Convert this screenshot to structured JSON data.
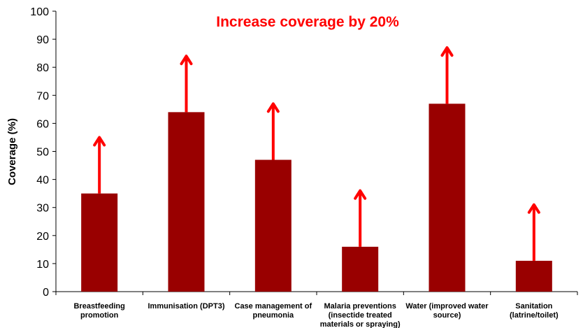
{
  "chart_data": {
    "type": "bar",
    "title": "Increase coverage by 20%",
    "ylabel": "Coverage  (%)",
    "xlabel": "",
    "ylim": [
      0,
      100
    ],
    "yticks": [
      0,
      10,
      20,
      30,
      40,
      50,
      60,
      70,
      80,
      90,
      100
    ],
    "grid": false,
    "categories": [
      [
        "Breastfeeding",
        "promotion"
      ],
      [
        "Immunisation (DPT3)"
      ],
      [
        "Case management of",
        "pneumonia"
      ],
      [
        "Malaria preventions",
        "(insectide treated",
        "materials or spraying)"
      ],
      [
        "Water (improved water",
        "source)"
      ],
      [
        "Sanitation",
        "(latrine/toilet)"
      ]
    ],
    "values": [
      35,
      64,
      47,
      16,
      67,
      11
    ],
    "targets": [
      55,
      84,
      67,
      36,
      87,
      31
    ],
    "colors": {
      "bar": "#990000",
      "arrow": "#ff0000",
      "title": "#ff0000",
      "axis": "#000000"
    }
  }
}
